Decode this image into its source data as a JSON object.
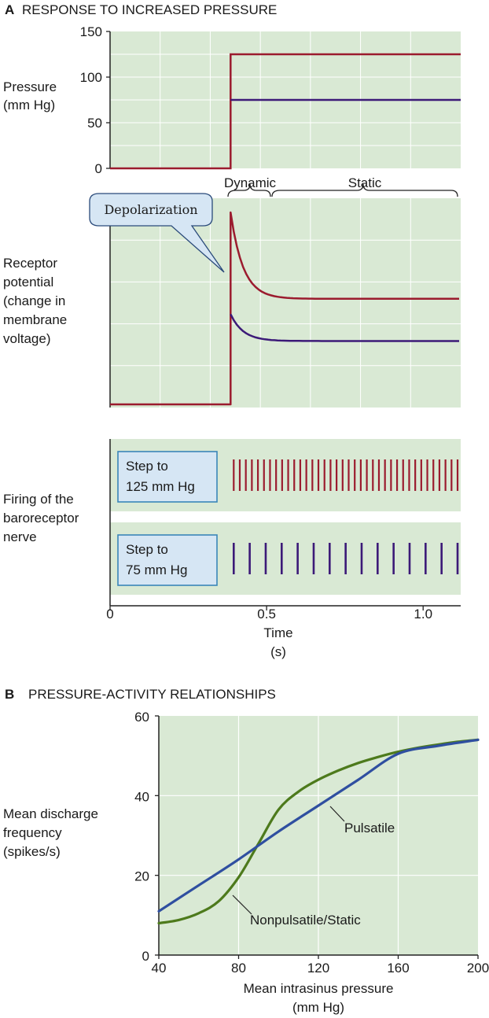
{
  "panel_a": {
    "letter": "A",
    "title": "RESPONSE TO INCREASED PRESSURE",
    "pressure_label": [
      "Pressure",
      "(mm Hg)"
    ],
    "receptor_label": [
      "Receptor",
      "potential",
      "(change in",
      "membrane",
      "voltage)"
    ],
    "firing_label": [
      "Firing of the",
      "baroreceptor",
      "nerve"
    ],
    "phase_dynamic": "Dynamic",
    "phase_static": "Static",
    "callout": "Depolarization",
    "step_high": [
      "Step to",
      "125 mm Hg"
    ],
    "step_low": [
      "Step to",
      "75 mm Hg"
    ],
    "time_label": [
      "Time",
      "(s)"
    ]
  },
  "panel_b": {
    "letter": "B",
    "title": "PRESSURE-ACTIVITY RELATIONSHIPS",
    "ylabel": [
      "Mean discharge",
      "frequency",
      "(spikes/s)"
    ],
    "xlabel": [
      "Mean intrasinus pressure",
      "(mm Hg)"
    ],
    "label_pulsatile": "Pulsatile",
    "label_static": "Nonpulsatile/Static"
  },
  "colors": {
    "panel_bg": "#d9e9d4",
    "grid": "#ffffff",
    "high": "#9b1b2e",
    "low": "#3c1a78",
    "pulsatile": "#2f4fa0",
    "static": "#4d7a1c",
    "callout_bg": "#d6e6f4",
    "callout_border": "#2a4a7a",
    "stepbox_border": "#3a86b8"
  },
  "chart_data": [
    {
      "type": "line",
      "name": "pressure",
      "xlim": [
        0,
        1.12
      ],
      "ylim": [
        0,
        150
      ],
      "yticks": [
        0,
        50,
        100,
        150
      ],
      "series": [
        {
          "values_x": [
            0,
            0.385,
            0.385,
            1.12
          ],
          "values_y": [
            0,
            0,
            125,
            125
          ],
          "color": "high"
        },
        {
          "values_x": [
            0.385,
            1.12
          ],
          "values_y": [
            75,
            75
          ],
          "color": "low"
        }
      ]
    },
    {
      "type": "line",
      "name": "receptor-potential",
      "xlim": [
        0,
        1.12
      ],
      "series": [
        {
          "peak": 1.0,
          "plateau": 0.55,
          "color": "high"
        },
        {
          "peak": 0.47,
          "plateau": 0.33,
          "color": "low"
        }
      ],
      "step_time": 0.385
    },
    {
      "type": "scatter",
      "name": "spike-trains",
      "xlim": [
        0,
        1.12
      ],
      "xticks": [
        0,
        0.5,
        1.0
      ],
      "xticklabels": [
        "0",
        "0.5",
        "1.0"
      ],
      "trains": [
        {
          "pressure": 125,
          "start": 0.385,
          "end": 1.11,
          "count": 38,
          "color": "high"
        },
        {
          "pressure": 75,
          "start": 0.385,
          "end": 1.11,
          "count": 15,
          "color": "low"
        }
      ]
    },
    {
      "type": "line",
      "name": "pressure-activity",
      "xlim": [
        40,
        200
      ],
      "ylim": [
        0,
        60
      ],
      "xticks": [
        40,
        80,
        120,
        160,
        200
      ],
      "yticks": [
        0,
        20,
        40,
        60
      ],
      "series": [
        {
          "label": "Pulsatile",
          "color": "pulsatile",
          "x": [
            40,
            60,
            80,
            100,
            120,
            140,
            160,
            180,
            200
          ],
          "y": [
            11,
            17.5,
            24,
            31,
            37.5,
            44,
            50.5,
            52.5,
            54
          ]
        },
        {
          "label": "Nonpulsatile/Static",
          "color": "static",
          "x": [
            40,
            50,
            60,
            70,
            80,
            90,
            100,
            110,
            120,
            130,
            140,
            150,
            160,
            170,
            180,
            190,
            200
          ],
          "y": [
            8,
            8.8,
            10.5,
            13.5,
            19.5,
            28,
            36.5,
            41,
            44,
            46.3,
            48.2,
            49.7,
            51,
            52,
            52.8,
            53.5,
            54
          ]
        }
      ]
    }
  ]
}
